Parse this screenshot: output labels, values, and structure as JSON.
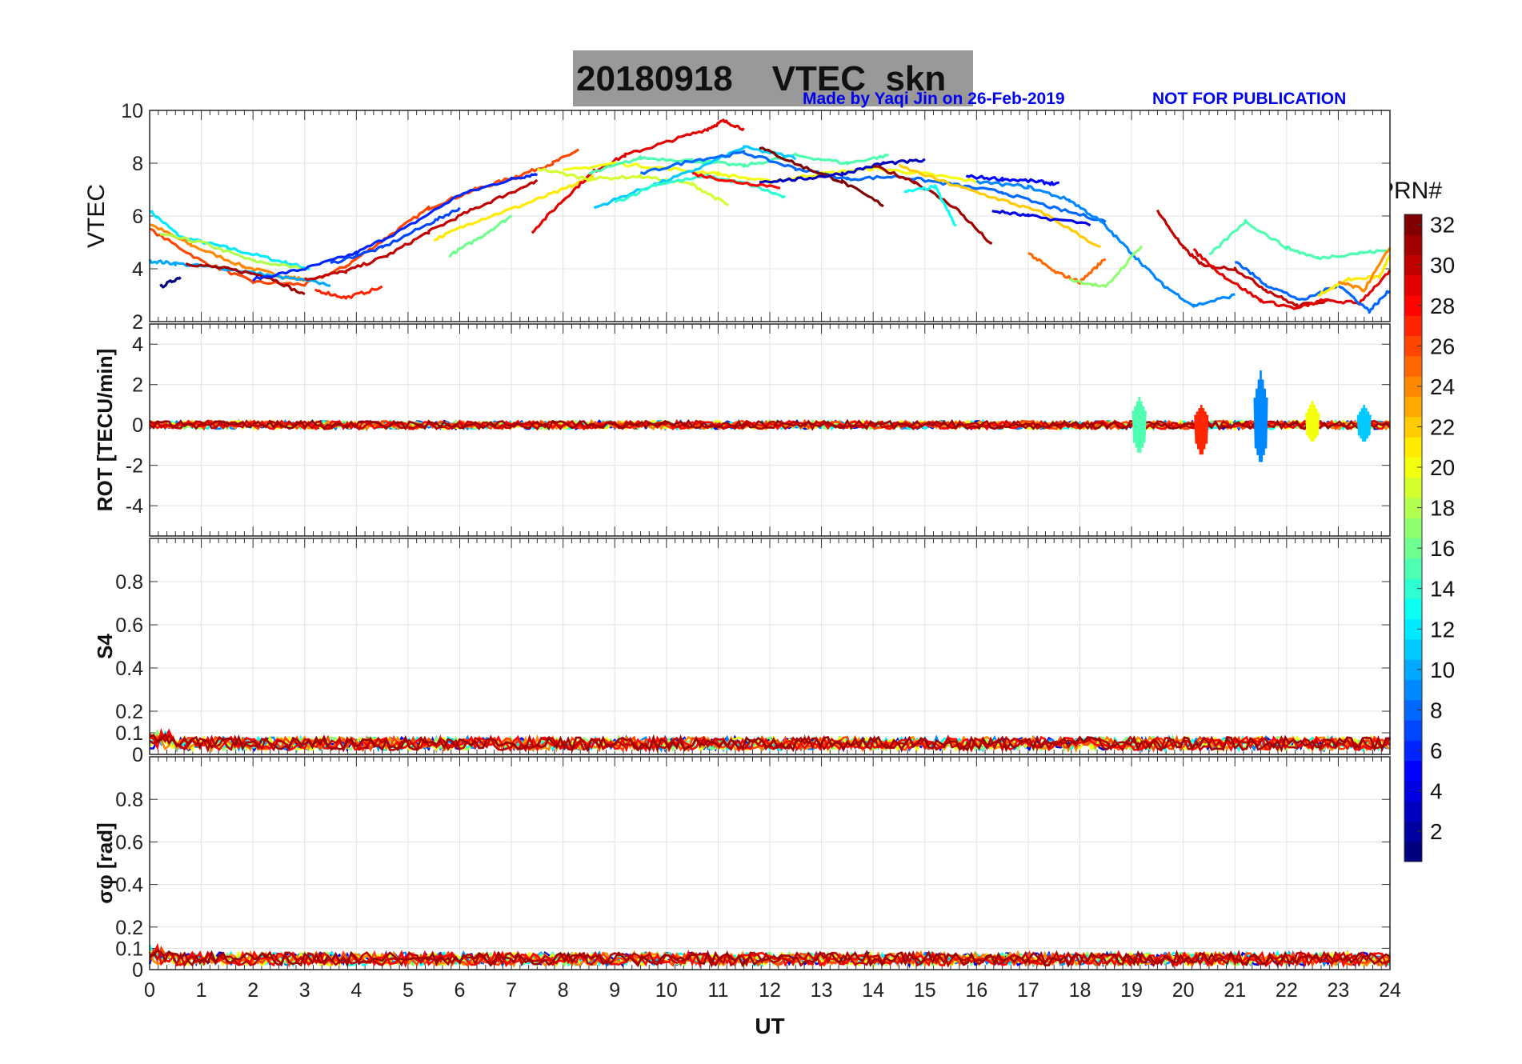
{
  "header": {
    "title": "20180918    VTEC  skn",
    "credit": "Made by Yaqi Jin on 26-Feb-2019",
    "notice": "NOT FOR PUBLICATION"
  },
  "colorbar": {
    "label": "PRN#",
    "ticks": [
      "2",
      "4",
      "6",
      "8",
      "10",
      "12",
      "14",
      "16",
      "18",
      "20",
      "22",
      "24",
      "26",
      "28",
      "30",
      "32"
    ],
    "colormap": "jet",
    "range": [
      1,
      32
    ]
  },
  "chart_data": [
    {
      "type": "line",
      "panel": "vtec",
      "ylabel": "VTEC",
      "ylim": [
        2,
        10
      ],
      "yticks": [
        2,
        4,
        6,
        8,
        10
      ],
      "xlim": [
        0,
        24
      ],
      "grid": true,
      "series": [
        {
          "prn": 12,
          "x": [
            0,
            0.6,
            1.5,
            2.5,
            3.1
          ],
          "y": [
            6.2,
            5.2,
            4.8,
            4.3,
            4.0
          ]
        },
        {
          "prn": 24,
          "x": [
            0,
            0.8,
            1.8,
            2.6,
            3.0
          ],
          "y": [
            5.7,
            4.9,
            4.1,
            3.7,
            3.6
          ]
        },
        {
          "prn": 26,
          "x": [
            0,
            1,
            2,
            3,
            3.8,
            4.6,
            5.4,
            6.3,
            7.1,
            7.8,
            8.3
          ],
          "y": [
            5.5,
            4.3,
            3.5,
            3.4,
            4.1,
            5.2,
            6.3,
            7.0,
            7.5,
            8.0,
            8.5
          ]
        },
        {
          "prn": 18,
          "x": [
            0.2,
            1,
            2,
            3
          ],
          "y": [
            5.3,
            5.0,
            4.3,
            4.0
          ]
        },
        {
          "prn": 10,
          "x": [
            0,
            0.5,
            1.5,
            2.5,
            3.5
          ],
          "y": [
            4.3,
            4.2,
            4.0,
            3.7,
            3.4
          ]
        },
        {
          "prn": 1,
          "x": [
            0.2,
            0.6
          ],
          "y": [
            3.3,
            3.7
          ]
        },
        {
          "prn": 31,
          "x": [
            0.7,
            1.5,
            2.3,
            3.0
          ],
          "y": [
            4.2,
            4.0,
            3.7,
            3.0
          ]
        },
        {
          "prn": 6,
          "x": [
            2,
            3,
            4,
            5,
            6,
            7,
            7.5
          ],
          "y": [
            3.6,
            4.0,
            4.6,
            5.6,
            6.8,
            7.4,
            7.6
          ]
        },
        {
          "prn": 30,
          "x": [
            3,
            3.8,
            4.6,
            5.4,
            6.2,
            7,
            7.5
          ],
          "y": [
            3.6,
            3.9,
            4.5,
            5.4,
            6.2,
            6.9,
            7.3
          ]
        },
        {
          "prn": 27,
          "x": [
            3.2,
            3.8,
            4.5
          ],
          "y": [
            3.2,
            2.9,
            3.3
          ]
        },
        {
          "prn": 7,
          "x": [
            3.5,
            4.5,
            5.5,
            6
          ],
          "y": [
            4.2,
            4.8,
            5.8,
            6.3
          ]
        },
        {
          "prn": 21,
          "x": [
            5.5,
            6.3,
            7.2,
            8,
            8.6
          ],
          "y": [
            5.1,
            5.8,
            6.4,
            7.0,
            7.5
          ]
        },
        {
          "prn": 16,
          "x": [
            5.8,
            6.4,
            7
          ],
          "y": [
            4.5,
            5.2,
            6.0
          ]
        },
        {
          "prn": 29,
          "x": [
            7.4,
            8,
            8.6,
            9.2,
            10,
            10.8,
            11.1,
            11.5
          ],
          "y": [
            5.4,
            6.6,
            7.7,
            8.3,
            8.8,
            9.3,
            9.6,
            9.3
          ]
        },
        {
          "prn": 20,
          "x": [
            8,
            9,
            10,
            11,
            12,
            13,
            14,
            15,
            16
          ],
          "y": [
            7.7,
            8.0,
            7.8,
            7.6,
            7.3,
            7.6,
            7.8,
            7.6,
            7.3
          ]
        },
        {
          "prn": 19,
          "x": [
            7.5,
            8.5,
            9.5,
            10.5,
            11.2
          ],
          "y": [
            7.8,
            7.4,
            7.5,
            7.2,
            6.4
          ]
        },
        {
          "prn": 15,
          "x": [
            8.5,
            9.5,
            10.5,
            11.5,
            12.5,
            13.5,
            14.3
          ],
          "y": [
            7.6,
            8.2,
            8.1,
            7.9,
            8.3,
            8.0,
            8.3
          ]
        },
        {
          "prn": 11,
          "x": [
            8.6,
            9.5,
            10.5,
            11.5,
            12.5
          ],
          "y": [
            6.3,
            7.0,
            7.7,
            8.6,
            8.2
          ]
        },
        {
          "prn": 14,
          "x": [
            9,
            9.8,
            10.8,
            11.6,
            12.3
          ],
          "y": [
            6.5,
            7.2,
            7.5,
            7.2,
            6.7
          ]
        },
        {
          "prn": 8,
          "x": [
            9.5,
            10.5,
            11.5,
            12.5,
            13.5,
            14.5,
            15.5,
            16.5,
            17.5,
            18.5
          ],
          "y": [
            7.6,
            8.1,
            8.4,
            7.8,
            7.4,
            7.5,
            7.2,
            6.9,
            6.3,
            5.8
          ]
        },
        {
          "prn": 28,
          "x": [
            10.5,
            11.3,
            12.2
          ],
          "y": [
            7.6,
            7.3,
            7.1
          ]
        },
        {
          "prn": 32,
          "x": [
            11.8,
            12.6,
            13.4,
            14.2
          ],
          "y": [
            8.6,
            7.9,
            7.3,
            6.4
          ]
        },
        {
          "prn": 3,
          "x": [
            11.8,
            12.6,
            13.4,
            14.2,
            15
          ],
          "y": [
            7.3,
            7.4,
            7.6,
            8.0,
            8.1
          ]
        },
        {
          "prn": 31,
          "x": [
            14,
            14.8,
            15.6,
            16.3
          ],
          "y": [
            7.9,
            7.3,
            6.3,
            4.9
          ]
        },
        {
          "prn": 22,
          "x": [
            14.5,
            15.5,
            16.5,
            17.3,
            18.4
          ],
          "y": [
            7.9,
            7.2,
            6.6,
            6.1,
            4.8
          ]
        },
        {
          "prn": 13,
          "x": [
            14.6,
            15.2,
            15.6
          ],
          "y": [
            6.9,
            7.1,
            5.6
          ]
        },
        {
          "prn": 5,
          "x": [
            15.8,
            16.5,
            17.2,
            17.6
          ],
          "y": [
            7.5,
            7.4,
            7.3,
            7.2
          ]
        },
        {
          "prn": 9,
          "x": [
            16,
            17,
            17.8,
            18.4,
            19,
            19.6,
            20.2,
            21
          ],
          "y": [
            7.3,
            7.1,
            6.6,
            5.8,
            4.6,
            3.4,
            2.6,
            3.0
          ]
        },
        {
          "prn": 4,
          "x": [
            16.3,
            17,
            18.2
          ],
          "y": [
            6.2,
            6.0,
            5.7
          ]
        },
        {
          "prn": 25,
          "x": [
            17,
            17.5,
            18,
            18.5
          ],
          "y": [
            4.6,
            3.9,
            3.5,
            4.4
          ]
        },
        {
          "prn": 17,
          "x": [
            17.8,
            18.5,
            19.2
          ],
          "y": [
            3.6,
            3.3,
            4.9
          ]
        },
        {
          "prn": 30,
          "x": [
            19.5,
            20,
            20.4,
            21,
            21.6,
            22.2,
            22.8
          ],
          "y": [
            6.2,
            4.8,
            4.1,
            4.0,
            3.2,
            2.6,
            2.8
          ]
        },
        {
          "prn": 29,
          "x": [
            20.2,
            20.8,
            21.5,
            22.2,
            22.7,
            23.4,
            24
          ],
          "y": [
            4.7,
            3.7,
            2.8,
            2.5,
            2.8,
            2.7,
            3.9
          ]
        },
        {
          "prn": 15,
          "x": [
            20.5,
            21.2,
            22,
            22.6,
            23.4,
            24
          ],
          "y": [
            4.5,
            5.8,
            4.8,
            4.4,
            4.6,
            4.7
          ]
        },
        {
          "prn": 8,
          "x": [
            21,
            21.6,
            22.3,
            23,
            23.6,
            24
          ],
          "y": [
            4.3,
            3.4,
            2.8,
            3.4,
            2.4,
            3.2
          ]
        },
        {
          "prn": 21,
          "x": [
            22.6,
            23.2,
            23.8,
            24
          ],
          "y": [
            3.0,
            3.6,
            3.7,
            4.5
          ]
        },
        {
          "prn": 24,
          "x": [
            23,
            23.5,
            24
          ],
          "y": [
            3.5,
            3.2,
            4.8
          ]
        }
      ]
    },
    {
      "type": "line",
      "panel": "rot",
      "ylabel": "ROT [TECU/min]",
      "ylim": [
        -5.5,
        5
      ],
      "yticks": [
        -4,
        -2,
        0,
        2,
        4
      ],
      "xlim": [
        0,
        24
      ],
      "grid": true,
      "baseline": 0,
      "noise_amplitude": 0.2,
      "spikes": [
        {
          "prn": 15,
          "x": 19.15,
          "min": -1.5,
          "max": 1.4
        },
        {
          "prn": 27,
          "x": 20.35,
          "min": -1.6,
          "max": 1.0
        },
        {
          "prn": 9,
          "x": 21.5,
          "min": -2.0,
          "max": 2.7
        },
        {
          "prn": 20,
          "x": 22.5,
          "min": -0.9,
          "max": 1.2
        },
        {
          "prn": 11,
          "x": 23.5,
          "min": -0.9,
          "max": 1.0
        }
      ]
    },
    {
      "type": "line",
      "panel": "s4",
      "ylabel": "S4",
      "ylim": [
        0,
        1
      ],
      "yticks": [
        0,
        0.1,
        0.2,
        0.4,
        0.6,
        0.8
      ],
      "xlim": [
        0,
        24
      ],
      "grid": true,
      "baseline": 0.05,
      "noise_amplitude": 0.03
    },
    {
      "type": "line",
      "panel": "sigma_phi",
      "ylabel": "σφ [rad]",
      "xlabel": "UT",
      "ylim": [
        0,
        1
      ],
      "yticks": [
        0,
        0.1,
        0.2,
        0.4,
        0.6,
        0.8
      ],
      "xlim": [
        0,
        24
      ],
      "xticks": [
        0,
        1,
        2,
        3,
        4,
        5,
        6,
        7,
        8,
        9,
        10,
        11,
        12,
        13,
        14,
        15,
        16,
        17,
        18,
        19,
        20,
        21,
        22,
        23,
        24
      ],
      "grid": true,
      "baseline": 0.05,
      "noise_amplitude": 0.03
    }
  ]
}
